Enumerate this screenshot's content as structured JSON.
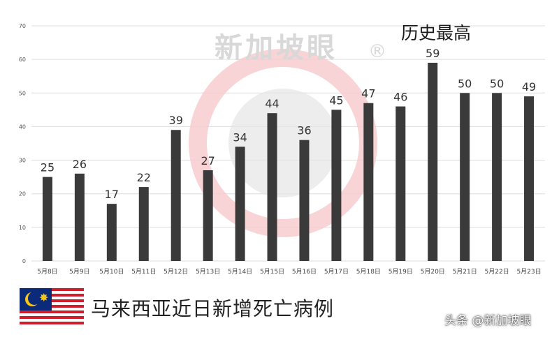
{
  "chart_data": {
    "type": "bar",
    "categories": [
      "5月8日",
      "5月9日",
      "5月10日",
      "5月11日",
      "5月12日",
      "5月13日",
      "5月14日",
      "5月15日",
      "5月16日",
      "5月17日",
      "5月18日",
      "5月19日",
      "5月20日",
      "5月21日",
      "5月22日",
      "5月23日"
    ],
    "values": [
      25,
      26,
      17,
      22,
      39,
      27,
      34,
      44,
      36,
      45,
      47,
      46,
      59,
      50,
      50,
      49
    ],
    "yticks": [
      0,
      10,
      20,
      30,
      40,
      50,
      60,
      70
    ],
    "ylim": [
      0,
      70
    ],
    "grid": true,
    "annotation": "历史最高",
    "bar_color": "#3a3a3a",
    "grid_color": "#dddddd"
  },
  "watermark": {
    "text": "新加坡眼",
    "mark": "®"
  },
  "footer": {
    "caption": "马来西亚近日新增死亡病例",
    "badge": "头条 @新加坡眼"
  }
}
